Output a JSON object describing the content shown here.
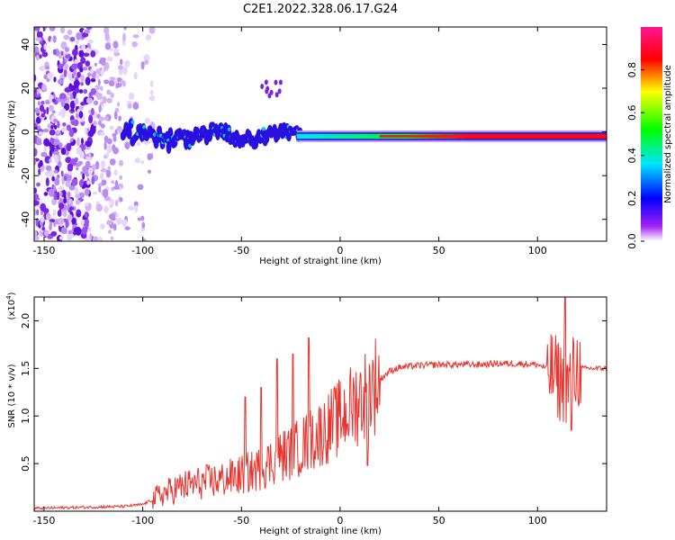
{
  "title": "C2E1.2022.328.06.17.G24",
  "chart_data": [
    {
      "type": "heatmap",
      "xlabel": "Height of straight line (km)",
      "ylabel": "Frequency (Hz)",
      "xlim": [
        -155,
        135
      ],
      "ylim": [
        -50,
        48
      ],
      "xticks": [
        -150,
        -100,
        -50,
        0,
        50,
        100
      ],
      "yticks": [
        -40,
        -20,
        0,
        20,
        40
      ],
      "colorbar": {
        "label": "Normalized spectral amplitude",
        "range": [
          0,
          1
        ],
        "ticks": [
          0.0,
          0.2,
          0.4,
          0.6,
          0.8
        ],
        "colormap": [
          "#ffffff",
          "#a020f0",
          "#0000ff",
          "#00e5ff",
          "#00ff00",
          "#ffff00",
          "#ff0000",
          "#ff1493"
        ]
      },
      "signal_band": {
        "x_start": -110,
        "x_end": 135,
        "center_frequency_hz": -2,
        "noise_region_x": [
          -155,
          -95
        ],
        "weak_feature": {
          "x": [
            -40,
            -30
          ],
          "frequency_hz": [
            16,
            26
          ]
        }
      },
      "grid": false
    },
    {
      "type": "line",
      "xlabel": "Height of straight line (km)",
      "ylabel": "SNR (10 * v/v)",
      "scale_label": "(x10",
      "scale_exponent": "4",
      "xlim": [
        -155,
        135
      ],
      "ylim": [
        0,
        22500
      ],
      "xticks": [
        -150,
        -100,
        -50,
        0,
        50,
        100
      ],
      "yticks": [
        5000,
        10000,
        15000,
        20000
      ],
      "ytick_labels": [
        "0.5",
        "1.0",
        "1.5",
        "2.0"
      ],
      "line_color": "#e8342e",
      "grid": false,
      "series": [
        {
          "x": [
            -155,
            -110,
            -100,
            -95,
            -90,
            -80,
            -70,
            -60,
            -50,
            -40,
            -35,
            -30,
            -25,
            -20,
            -15,
            -10,
            -5,
            0,
            5,
            10,
            15,
            20,
            25,
            30,
            40,
            50,
            60,
            70,
            80,
            90,
            100,
            105,
            110,
            115,
            120,
            125,
            135
          ],
          "y": [
            300,
            500,
            700,
            1200,
            1800,
            2600,
            3000,
            3300,
            3800,
            4500,
            5200,
            5800,
            6200,
            6800,
            7500,
            8200,
            9000,
            9800,
            10800,
            11800,
            12800,
            13800,
            14700,
            15100,
            15300,
            15400,
            15400,
            15400,
            15500,
            15500,
            15400,
            15000,
            14000,
            13000,
            15000,
            15000,
            15000
          ]
        }
      ],
      "spikes": [
        {
          "x": -48,
          "y": 12000
        },
        {
          "x": -40,
          "y": 13000
        },
        {
          "x": -32,
          "y": 16000
        },
        {
          "x": -24,
          "y": 16500
        },
        {
          "x": -16,
          "y": 18200
        },
        {
          "x": 14,
          "y": 4800
        },
        {
          "x": 114,
          "y": 22500
        },
        {
          "x": 117,
          "y": 8500
        }
      ]
    }
  ]
}
